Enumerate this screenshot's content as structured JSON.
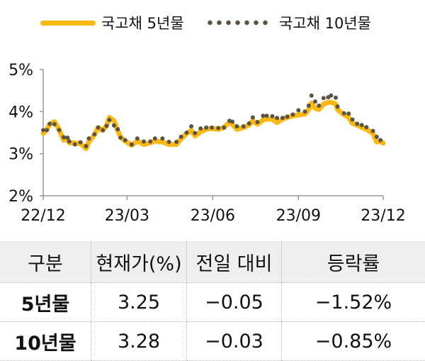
{
  "legend": {
    "series_5y": "국고채 5년물",
    "series_10y": "국고채 10년물"
  },
  "colors": {
    "series_5y": "#FDB813",
    "series_10y": "#5B5444",
    "axis": "#999999",
    "table_header_bg": "#EFEFEF"
  },
  "chart_data": {
    "type": "line",
    "ylim": [
      2,
      5
    ],
    "yticks": [
      "2%",
      "3%",
      "4%",
      "5%"
    ],
    "yunit": "%",
    "xlim": [
      "2022-12-01",
      "2023-12-01"
    ],
    "xticks": [
      {
        "date": "2022-12-01",
        "label": "22/12"
      },
      {
        "date": "2023-03-01",
        "label": "23/03"
      },
      {
        "date": "2023-06-01",
        "label": "23/06"
      },
      {
        "date": "2023-09-01",
        "label": "23/09"
      },
      {
        "date": "2023-12-01",
        "label": "23/12"
      }
    ],
    "grid": false,
    "legend_position": "top",
    "series": [
      {
        "name": "국고채 5년물",
        "style": "thick-line",
        "x": [
          "2022-12-01",
          "2022-12-05",
          "2022-12-08",
          "2022-12-13",
          "2022-12-18",
          "2022-12-23",
          "2022-12-27",
          "2022-12-29",
          "2023-01-04",
          "2023-01-10",
          "2023-01-16",
          "2023-01-19",
          "2023-01-25",
          "2023-01-29",
          "2023-02-03",
          "2023-02-07",
          "2023-02-10",
          "2023-02-15",
          "2023-02-19",
          "2023-02-22",
          "2023-02-27",
          "2023-03-06",
          "2023-03-12",
          "2023-03-19",
          "2023-03-26",
          "2023-03-31",
          "2023-04-08",
          "2023-04-15",
          "2023-04-23",
          "2023-04-28",
          "2023-05-04",
          "2023-05-09",
          "2023-05-13",
          "2023-05-19",
          "2023-05-25",
          "2023-05-31",
          "2023-06-07",
          "2023-06-13",
          "2023-06-19",
          "2023-06-22",
          "2023-06-27",
          "2023-07-04",
          "2023-07-10",
          "2023-07-14",
          "2023-07-19",
          "2023-07-25",
          "2023-07-29",
          "2023-08-04",
          "2023-08-09",
          "2023-08-15",
          "2023-08-20",
          "2023-08-26",
          "2023-09-01",
          "2023-09-08",
          "2023-09-12",
          "2023-09-15",
          "2023-09-19",
          "2023-09-23",
          "2023-09-28",
          "2023-10-03",
          "2023-10-06",
          "2023-10-11",
          "2023-10-13",
          "2023-10-20",
          "2023-10-25",
          "2023-10-29",
          "2023-11-03",
          "2023-11-08",
          "2023-11-13",
          "2023-11-20",
          "2023-11-24",
          "2023-11-28",
          "2023-12-01"
        ],
        "y": [
          3.48,
          3.58,
          3.7,
          3.76,
          3.58,
          3.32,
          3.36,
          3.26,
          3.25,
          3.24,
          3.12,
          3.28,
          3.45,
          3.62,
          3.55,
          3.66,
          3.86,
          3.78,
          3.55,
          3.4,
          3.3,
          3.2,
          3.3,
          3.22,
          3.26,
          3.3,
          3.28,
          3.22,
          3.22,
          3.35,
          3.48,
          3.55,
          3.42,
          3.52,
          3.58,
          3.6,
          3.58,
          3.62,
          3.75,
          3.7,
          3.58,
          3.62,
          3.68,
          3.78,
          3.7,
          3.8,
          3.82,
          3.82,
          3.74,
          3.82,
          3.86,
          3.9,
          3.92,
          3.94,
          4.05,
          4.2,
          4.08,
          4.05,
          4.18,
          4.22,
          4.22,
          4.18,
          4.05,
          3.92,
          3.86,
          3.72,
          3.68,
          3.62,
          3.58,
          3.48,
          3.28,
          3.3,
          3.25
        ]
      },
      {
        "name": "국고채 10년물",
        "style": "dotted",
        "x": [
          "2022-12-01",
          "2022-12-05",
          "2022-12-08",
          "2022-12-13",
          "2022-12-18",
          "2022-12-23",
          "2022-12-27",
          "2022-12-29",
          "2023-01-04",
          "2023-01-10",
          "2023-01-16",
          "2023-01-19",
          "2023-01-25",
          "2023-01-29",
          "2023-02-03",
          "2023-02-07",
          "2023-02-10",
          "2023-02-15",
          "2023-02-19",
          "2023-02-22",
          "2023-02-27",
          "2023-03-06",
          "2023-03-12",
          "2023-03-19",
          "2023-03-26",
          "2023-03-31",
          "2023-04-08",
          "2023-04-15",
          "2023-04-23",
          "2023-04-28",
          "2023-05-04",
          "2023-05-09",
          "2023-05-13",
          "2023-05-19",
          "2023-05-25",
          "2023-05-31",
          "2023-06-07",
          "2023-06-13",
          "2023-06-19",
          "2023-06-22",
          "2023-06-27",
          "2023-07-04",
          "2023-07-10",
          "2023-07-14",
          "2023-07-19",
          "2023-07-25",
          "2023-07-29",
          "2023-08-04",
          "2023-08-09",
          "2023-08-15",
          "2023-08-20",
          "2023-08-26",
          "2023-09-01",
          "2023-09-08",
          "2023-09-12",
          "2023-09-15",
          "2023-09-19",
          "2023-09-23",
          "2023-09-28",
          "2023-10-03",
          "2023-10-06",
          "2023-10-11",
          "2023-10-13",
          "2023-10-20",
          "2023-10-25",
          "2023-10-29",
          "2023-11-03",
          "2023-11-08",
          "2023-11-13",
          "2023-11-20",
          "2023-11-24",
          "2023-11-28"
        ],
        "y": [
          3.56,
          3.56,
          3.71,
          3.7,
          3.56,
          3.39,
          3.38,
          3.29,
          3.22,
          3.27,
          3.18,
          3.36,
          3.46,
          3.62,
          3.56,
          3.66,
          3.8,
          3.67,
          3.58,
          3.38,
          3.32,
          3.22,
          3.36,
          3.29,
          3.29,
          3.36,
          3.36,
          3.28,
          3.28,
          3.4,
          3.5,
          3.65,
          3.49,
          3.6,
          3.62,
          3.62,
          3.61,
          3.62,
          3.78,
          3.76,
          3.65,
          3.65,
          3.72,
          3.86,
          3.75,
          3.9,
          3.9,
          3.89,
          3.85,
          3.85,
          3.88,
          3.93,
          4.03,
          4.0,
          4.14,
          4.38,
          4.24,
          4.14,
          4.32,
          4.34,
          4.38,
          4.33,
          4.12,
          3.96,
          3.95,
          3.81,
          3.71,
          3.68,
          3.63,
          3.54,
          3.4,
          3.32
        ]
      }
    ]
  },
  "table": {
    "headers": [
      "구분",
      "현재가(%)",
      "전일 대비",
      "등락률"
    ],
    "rows": [
      [
        "5년물",
        "3.25",
        "−0.05",
        "−1.52%"
      ],
      [
        "10년물",
        "3.28",
        "−0.03",
        "−0.85%"
      ]
    ]
  }
}
